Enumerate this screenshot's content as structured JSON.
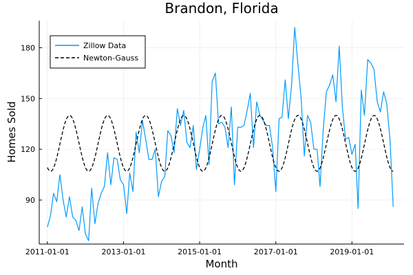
{
  "chart_data": {
    "type": "line",
    "title": "Brandon, Florida",
    "xlabel": "Month",
    "ylabel": "Homes Sold",
    "x_start": "2011-01-01",
    "x_ticks": [
      "2011-01-01",
      "2013-01-01",
      "2015-01-01",
      "2017-01-01",
      "2019-01-01"
    ],
    "xlim": [
      "2010-10-15",
      "2020-05-15"
    ],
    "y_ticks": [
      90,
      120,
      150,
      180
    ],
    "ylim": [
      64,
      196
    ],
    "grid": true,
    "legend_position": "top-left",
    "series": [
      {
        "name": "Zillow Data",
        "color": "#009AF9",
        "style": "solid",
        "values": [
          74,
          81,
          94,
          89,
          105,
          90,
          80,
          92,
          80,
          78,
          72,
          86,
          70,
          66,
          97,
          76,
          88,
          94,
          98,
          118,
          99,
          115,
          114,
          102,
          99,
          82,
          106,
          95,
          130,
          118,
          137,
          126,
          114,
          114,
          120,
          92,
          101,
          104,
          131,
          128,
          118,
          144,
          134,
          143,
          124,
          121,
          134,
          108,
          120,
          133,
          140,
          111,
          160,
          165,
          135,
          136,
          133,
          121,
          145,
          99,
          133,
          133,
          134,
          143,
          153,
          121,
          148,
          140,
          137,
          134,
          134,
          121,
          95,
          138,
          139,
          161,
          138,
          158,
          192,
          170,
          150,
          116,
          140,
          136,
          120,
          120,
          98,
          132,
          154,
          158,
          164,
          148,
          181,
          145,
          126,
          127,
          117,
          123,
          85,
          155,
          140,
          173,
          171,
          167,
          148,
          142,
          154,
          147,
          126,
          86
        ]
      },
      {
        "name": "Newton-Gauss",
        "color": "#000000",
        "style": "dashed",
        "mean": 123.5,
        "amplitude": 16.5,
        "period_months": 12,
        "peak_month": 7
      }
    ]
  }
}
